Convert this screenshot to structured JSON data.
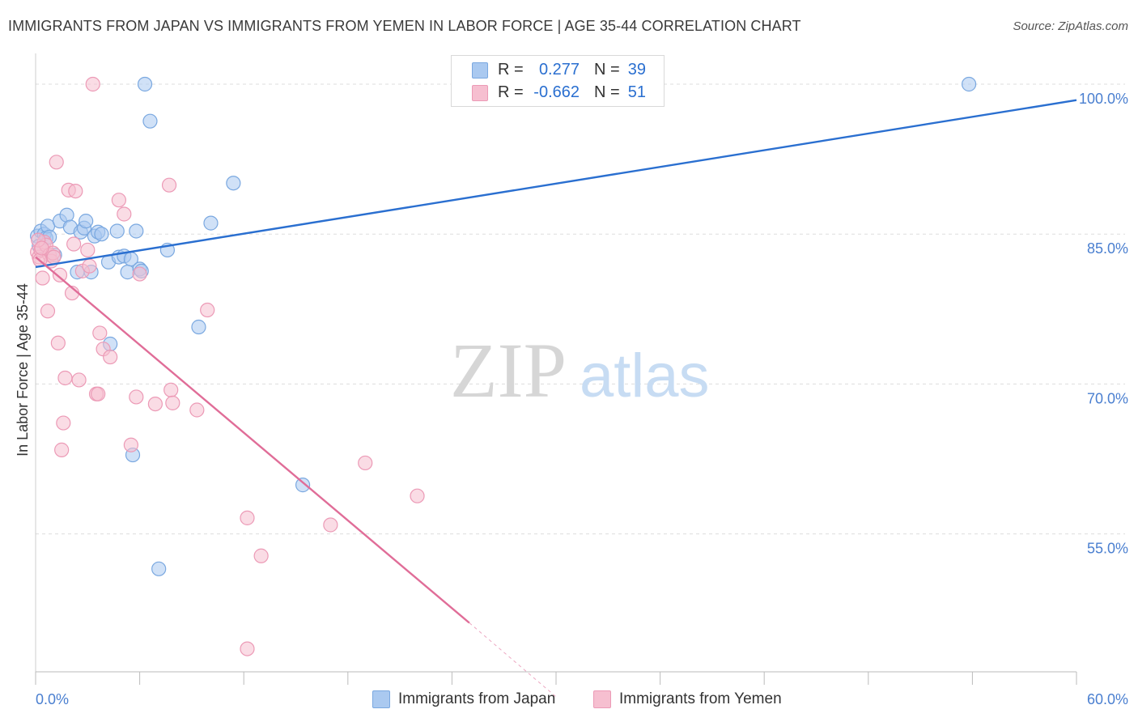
{
  "title": "IMMIGRANTS FROM JAPAN VS IMMIGRANTS FROM YEMEN IN LABOR FORCE | AGE 35-44 CORRELATION CHART",
  "source": "Source: ZipAtlas.com",
  "watermark": {
    "zip": "ZIP",
    "atlas": "atlas"
  },
  "colors": {
    "japan_fill": "#aac9f0",
    "japan_stroke": "#7aa8e0",
    "japan_line": "#2a6fd0",
    "yemen_fill": "#f6bfd0",
    "yemen_stroke": "#ec9ab6",
    "yemen_line": "#e06d98",
    "axis_text": "#4a7fd0",
    "grid": "#dddddd"
  },
  "legend": {
    "r_label": "R =",
    "n_label": "N =",
    "japan": {
      "r": "0.277",
      "n": "39"
    },
    "yemen": {
      "r": "-0.662",
      "n": "51"
    }
  },
  "bottom_legend": {
    "japan": "Immigrants from Japan",
    "yemen": "Immigrants from Yemen"
  },
  "chart_data": {
    "type": "scatter",
    "title": "IMMIGRANTS FROM JAPAN VS IMMIGRANTS FROM YEMEN IN LABOR FORCE | AGE 35-44 CORRELATION CHART",
    "xlabel": "",
    "ylabel": "In Labor Force | Age 35-44",
    "xlim": [
      0,
      60
    ],
    "ylim": [
      41.2,
      103.4
    ],
    "x_tick_labels": [
      {
        "value": 0,
        "label": "0.0%"
      },
      {
        "value": 60,
        "label": "60.0%"
      }
    ],
    "x_minor_ticks": [
      0,
      6,
      12,
      18,
      24,
      30,
      36,
      42,
      48,
      54,
      60
    ],
    "y_ticks": [
      {
        "value": 100,
        "label": "100.0%"
      },
      {
        "value": 85,
        "label": "85.0%"
      },
      {
        "value": 70,
        "label": "70.0%"
      },
      {
        "value": 55,
        "label": "55.0%"
      }
    ],
    "grid": true,
    "series": [
      {
        "name": "Immigrants from Japan",
        "r": 0.277,
        "n": 39,
        "trend": {
          "x": [
            0,
            60
          ],
          "y": [
            81.7,
            98.4
          ]
        },
        "points": [
          [
            0.1,
            84.8
          ],
          [
            0.3,
            85.3
          ],
          [
            0.5,
            85.0
          ],
          [
            0.6,
            84.6
          ],
          [
            0.7,
            85.8
          ],
          [
            0.8,
            84.7
          ],
          [
            1.1,
            82.9
          ],
          [
            1.4,
            86.3
          ],
          [
            1.8,
            86.9
          ],
          [
            2.0,
            85.7
          ],
          [
            2.4,
            81.2
          ],
          [
            2.6,
            85.2
          ],
          [
            2.8,
            85.6
          ],
          [
            2.9,
            86.3
          ],
          [
            3.2,
            81.2
          ],
          [
            3.4,
            84.8
          ],
          [
            3.6,
            85.2
          ],
          [
            3.8,
            85.0
          ],
          [
            4.2,
            82.2
          ],
          [
            4.3,
            74.0
          ],
          [
            4.7,
            85.3
          ],
          [
            4.8,
            82.7
          ],
          [
            5.1,
            82.8
          ],
          [
            5.3,
            81.2
          ],
          [
            5.5,
            82.5
          ],
          [
            5.6,
            62.9
          ],
          [
            5.8,
            85.3
          ],
          [
            6.0,
            81.5
          ],
          [
            6.3,
            100.0
          ],
          [
            6.6,
            96.3
          ],
          [
            7.1,
            51.5
          ],
          [
            7.6,
            83.4
          ],
          [
            9.4,
            75.7
          ],
          [
            10.1,
            86.1
          ],
          [
            11.4,
            90.1
          ],
          [
            15.4,
            59.9
          ],
          [
            53.8,
            100.0
          ],
          [
            6.1,
            81.3
          ],
          [
            0.2,
            83.8
          ]
        ]
      },
      {
        "name": "Immigrants from Yemen",
        "r": -0.662,
        "n": 51,
        "trend": {
          "x": [
            0,
            25.0
          ],
          "y": [
            82.7,
            46.1
          ]
        },
        "trend_extension": {
          "x": [
            25.0,
            30.0
          ],
          "y": [
            46.1,
            38.7
          ]
        },
        "points": [
          [
            0.1,
            83.2
          ],
          [
            0.2,
            82.7
          ],
          [
            0.3,
            83.4
          ],
          [
            0.4,
            80.6
          ],
          [
            0.5,
            84.2
          ],
          [
            0.6,
            83.9
          ],
          [
            0.7,
            77.3
          ],
          [
            0.8,
            82.9
          ],
          [
            0.9,
            82.3
          ],
          [
            1.0,
            83.1
          ],
          [
            1.2,
            92.2
          ],
          [
            1.3,
            74.1
          ],
          [
            1.4,
            80.9
          ],
          [
            1.5,
            63.4
          ],
          [
            1.6,
            66.1
          ],
          [
            1.7,
            70.6
          ],
          [
            1.9,
            89.4
          ],
          [
            2.1,
            79.1
          ],
          [
            2.3,
            89.3
          ],
          [
            2.5,
            70.4
          ],
          [
            2.7,
            81.3
          ],
          [
            3.0,
            83.4
          ],
          [
            3.1,
            81.8
          ],
          [
            3.3,
            100.0
          ],
          [
            3.5,
            69.0
          ],
          [
            3.6,
            69.0
          ],
          [
            3.7,
            75.1
          ],
          [
            3.9,
            73.5
          ],
          [
            4.3,
            72.7
          ],
          [
            4.8,
            88.4
          ],
          [
            5.1,
            87.0
          ],
          [
            5.5,
            63.9
          ],
          [
            5.8,
            68.7
          ],
          [
            6.0,
            81.0
          ],
          [
            6.9,
            68.0
          ],
          [
            7.7,
            89.9
          ],
          [
            7.8,
            69.4
          ],
          [
            7.9,
            68.1
          ],
          [
            9.3,
            67.4
          ],
          [
            9.9,
            77.4
          ],
          [
            12.2,
            56.6
          ],
          [
            12.2,
            43.5
          ],
          [
            13.0,
            52.8
          ],
          [
            17.0,
            55.9
          ],
          [
            19.0,
            62.1
          ],
          [
            22.0,
            58.8
          ],
          [
            0.15,
            84.4
          ],
          [
            0.25,
            82.4
          ],
          [
            0.35,
            83.6
          ],
          [
            1.05,
            82.7
          ],
          [
            2.2,
            84.0
          ]
        ]
      }
    ]
  }
}
